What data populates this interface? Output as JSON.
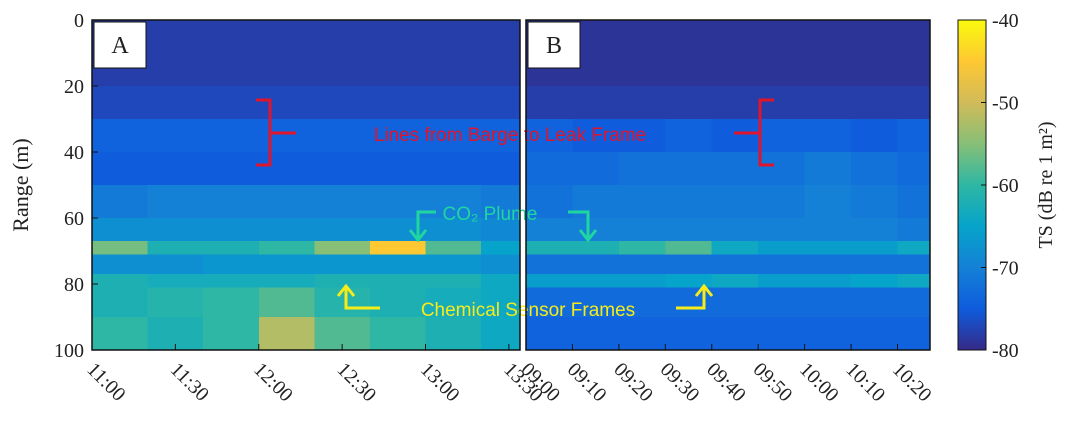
{
  "chart_data": [
    {
      "type": "heatmap",
      "panel_label": "A",
      "ylabel": "Range (m)",
      "ylim": [
        0,
        100
      ],
      "y_reversed": true,
      "yticks": [
        0,
        20,
        40,
        60,
        80,
        100
      ],
      "xlim": [
        660,
        814
      ],
      "xticks": [
        {
          "value": 660,
          "label": "11:00"
        },
        {
          "value": 690,
          "label": "11:30"
        },
        {
          "value": 720,
          "label": "12:00"
        },
        {
          "value": 750,
          "label": "12:30"
        },
        {
          "value": 780,
          "label": "13:00"
        },
        {
          "value": 810,
          "label": "13:30"
        }
      ],
      "xbins": [
        660,
        680,
        700,
        720,
        740,
        760,
        780,
        800,
        814
      ],
      "ybins": [
        0,
        20,
        30,
        40,
        50,
        60,
        67,
        71,
        77,
        81,
        90,
        100
      ],
      "z": [
        [
          -78,
          -78,
          -78,
          -78,
          -78,
          -78,
          -78,
          -78
        ],
        [
          -77,
          -77,
          -77,
          -77,
          -77,
          -77,
          -77,
          -77
        ],
        [
          -74,
          -74,
          -74,
          -74,
          -74,
          -74,
          -74,
          -74
        ],
        [
          -75,
          -75,
          -75,
          -75,
          -75,
          -75,
          -75,
          -75
        ],
        [
          -71,
          -70,
          -70,
          -70,
          -70,
          -70,
          -70,
          -71
        ],
        [
          -68,
          -68,
          -68,
          -68,
          -68,
          -68,
          -68,
          -69
        ],
        [
          -56,
          -62,
          -62,
          -60,
          -55,
          -45,
          -58,
          -65
        ],
        [
          -68,
          -68,
          -67,
          -67,
          -67,
          -67,
          -67,
          -68
        ],
        [
          -62,
          -63,
          -63,
          -63,
          -62,
          -62,
          -62,
          -64
        ],
        [
          -62,
          -61,
          -60,
          -58,
          -61,
          -62,
          -63,
          -64
        ],
        [
          -60,
          -62,
          -60,
          -52,
          -58,
          -60,
          -62,
          -64
        ]
      ],
      "annotations": [
        "Lines from Barge to Leak Frame",
        "CO₂ Plume",
        "Chemical Sensor Frames"
      ]
    },
    {
      "type": "heatmap",
      "panel_label": "B",
      "ylim": [
        0,
        100
      ],
      "y_reversed": true,
      "xlim": [
        540,
        627
      ],
      "xticks": [
        {
          "value": 540,
          "label": "09:00"
        },
        {
          "value": 550,
          "label": "09:10"
        },
        {
          "value": 560,
          "label": "09:20"
        },
        {
          "value": 570,
          "label": "09:30"
        },
        {
          "value": 580,
          "label": "09:40"
        },
        {
          "value": 590,
          "label": "09:50"
        },
        {
          "value": 600,
          "label": "10:00"
        },
        {
          "value": 610,
          "label": "10:10"
        },
        {
          "value": 620,
          "label": "10:20"
        }
      ],
      "xbins": [
        540,
        550,
        560,
        570,
        580,
        590,
        600,
        610,
        620,
        627
      ],
      "ybins": [
        0,
        20,
        30,
        40,
        50,
        60,
        67,
        71,
        77,
        81,
        90,
        100
      ],
      "z": [
        [
          -79,
          -79,
          -79,
          -79,
          -79,
          -79,
          -79,
          -79,
          -79
        ],
        [
          -78,
          -78,
          -78,
          -78,
          -78,
          -78,
          -78,
          -78,
          -78
        ],
        [
          -74,
          -75,
          -75,
          -74,
          -75,
          -74,
          -74,
          -75,
          -74
        ],
        [
          -73,
          -73,
          -72,
          -72,
          -72,
          -72,
          -71,
          -72,
          -73
        ],
        [
          -72,
          -71,
          -71,
          -71,
          -71,
          -71,
          -70,
          -71,
          -72
        ],
        [
          -70,
          -70,
          -70,
          -70,
          -70,
          -70,
          -70,
          -70,
          -71
        ],
        [
          -62,
          -62,
          -60,
          -58,
          -64,
          -66,
          -66,
          -66,
          -64
        ],
        [
          -72,
          -72,
          -72,
          -72,
          -72,
          -72,
          -72,
          -72,
          -72
        ],
        [
          -66,
          -66,
          -66,
          -65,
          -64,
          -66,
          -66,
          -65,
          -64
        ],
        [
          -73,
          -73,
          -73,
          -73,
          -73,
          -73,
          -73,
          -73,
          -73
        ],
        [
          -74,
          -74,
          -74,
          -74,
          -74,
          -74,
          -74,
          -74,
          -74
        ]
      ],
      "colormap": "parula",
      "colorbar": {
        "label": "TS (dB re 1 m²)",
        "clim": [
          -80,
          -40
        ],
        "ticks": [
          -40,
          -50,
          -60,
          -70,
          -80
        ]
      }
    }
  ]
}
